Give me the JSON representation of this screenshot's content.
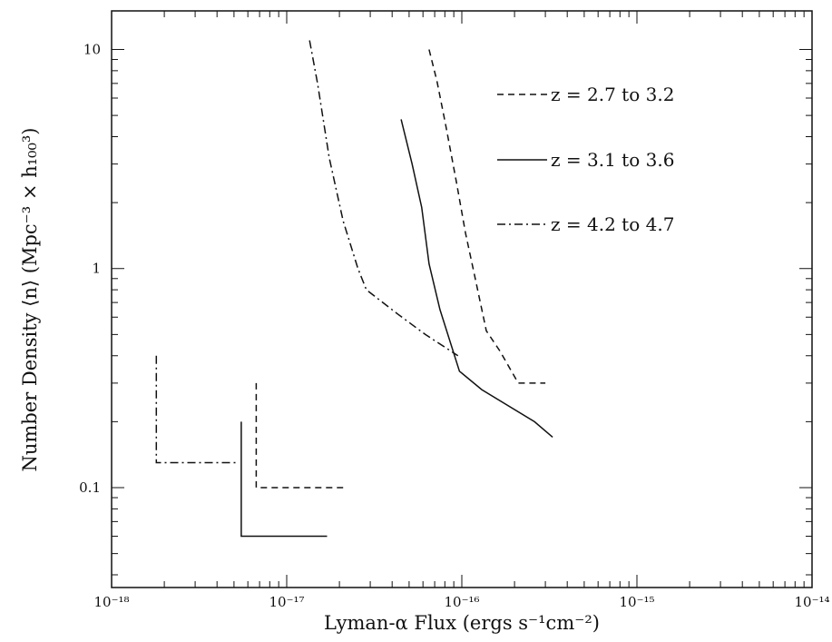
{
  "chart_data": {
    "type": "line",
    "xscale": "log",
    "yscale": "log",
    "xlim": [
      1e-18,
      1e-14
    ],
    "ylim": [
      0.035,
      15
    ],
    "xlabel": "Lyman-α Flux (ergs s⁻¹cm⁻²)",
    "ylabel": "Number Density ⟨n⟩ (Mpc⁻³ × h₁₀₀³)",
    "x_tick_labels": [
      "10⁻¹⁸",
      "10⁻¹⁷",
      "10⁻¹⁶",
      "10⁻¹⁵",
      "10⁻¹⁴"
    ],
    "y_tick_labels": [
      "0.1",
      "1",
      "10"
    ],
    "legend_position": "top-right",
    "series": [
      {
        "name": "z = 2.7 to 3.2",
        "style": "dashed",
        "x": [
          6.5e-17,
          7.2e-17,
          8.1e-17,
          9.3e-17,
          1.05e-16,
          1.2e-16,
          1.38e-16,
          1.65e-16,
          2.1e-16,
          3e-16
        ],
        "y": [
          10,
          7.2,
          4.5,
          2.5,
          1.45,
          0.88,
          0.52,
          0.42,
          0.3,
          0.3
        ],
        "limit": {
          "x": [
            6.7e-18,
            6.7e-18,
            2.1e-17
          ],
          "y": [
            0.3,
            0.1,
            0.1
          ]
        }
      },
      {
        "name": "z = 3.1 to 3.6",
        "style": "solid",
        "x": [
          4.5e-17,
          5.2e-17,
          5.9e-17,
          6.5e-17,
          7.5e-17,
          9.7e-17,
          1.3e-16,
          2.6e-16,
          3.3e-16
        ],
        "y": [
          4.8,
          3.0,
          1.9,
          1.05,
          0.65,
          0.34,
          0.28,
          0.2,
          0.17
        ],
        "limit": {
          "x": [
            5.5e-18,
            5.5e-18,
            1.7e-17
          ],
          "y": [
            0.2,
            0.06,
            0.06
          ]
        }
      },
      {
        "name": "z = 4.2 to 4.7",
        "style": "dash-dot",
        "x": [
          1.35e-17,
          1.5e-17,
          1.75e-17,
          2.1e-17,
          2.55e-17,
          2.85e-17,
          4.3e-17,
          6.2e-17,
          9.5e-17
        ],
        "y": [
          11,
          7.0,
          3.2,
          1.65,
          1.0,
          0.8,
          0.62,
          0.5,
          0.4
        ],
        "limit": {
          "x": [
            1.8e-18,
            1.8e-18,
            5.3e-18
          ],
          "y": [
            0.4,
            0.13,
            0.13
          ]
        }
      }
    ]
  }
}
